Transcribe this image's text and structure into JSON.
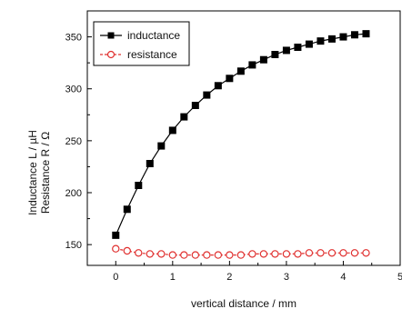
{
  "chart_data": {
    "type": "line",
    "xlabel": "vertical distance / mm",
    "ylabel_lines": [
      "Inductance L / µH",
      "Resistance R / Ω"
    ],
    "xlim": [
      -0.5,
      5
    ],
    "ylim": [
      130,
      375
    ],
    "xticks": [
      0,
      1,
      2,
      3,
      4,
      5
    ],
    "xtick_labels": [
      "0",
      "1",
      "2",
      "3",
      "4",
      "5"
    ],
    "yticks": [
      150,
      200,
      250,
      300,
      350
    ],
    "ytick_labels": [
      "150",
      "200",
      "250",
      "300",
      "350"
    ],
    "grid": false,
    "legend_position": "top-left",
    "x": [
      0,
      0.2,
      0.4,
      0.6,
      0.8,
      1.0,
      1.2,
      1.4,
      1.6,
      1.8,
      2.0,
      2.2,
      2.4,
      2.6,
      2.8,
      3.0,
      3.2,
      3.4,
      3.6,
      3.8,
      4.0,
      4.2,
      4.4
    ],
    "series": [
      {
        "name": "inductance",
        "color": "#000000",
        "marker": "filled-square",
        "values": [
          159,
          184,
          207,
          228,
          245,
          260,
          273,
          284,
          294,
          303,
          310,
          317,
          323,
          328,
          333,
          337,
          340,
          343,
          346,
          348,
          350,
          352,
          353
        ]
      },
      {
        "name": "resistance",
        "color": "#e0302f",
        "marker": "open-circle",
        "values": [
          146,
          144,
          142,
          141,
          141,
          140,
          140,
          140,
          140,
          140,
          140,
          140,
          141,
          141,
          141,
          141,
          141,
          142,
          142,
          142,
          142,
          142,
          142
        ]
      }
    ]
  }
}
